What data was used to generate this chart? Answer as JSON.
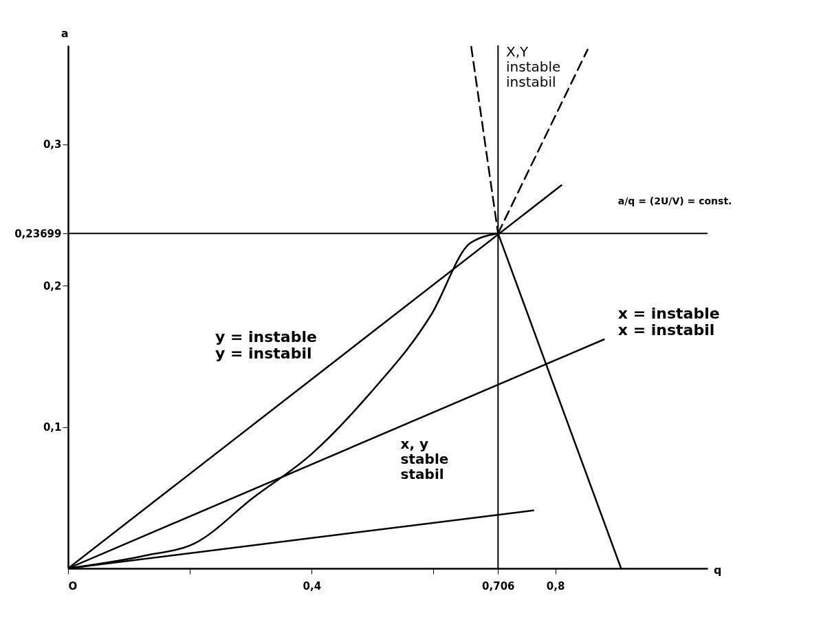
{
  "chart_data": {
    "type": "line",
    "xlabel": "q",
    "ylabel": "a",
    "xlim": [
      0,
      1.05
    ],
    "ylim": [
      0,
      0.37
    ],
    "xticks": [
      {
        "value": 0,
        "label": "O"
      },
      {
        "value": 0.2,
        "label": null
      },
      {
        "value": 0.4,
        "label": "0,4"
      },
      {
        "value": 0.6,
        "label": null
      },
      {
        "value": 0.706,
        "label": "0,706"
      },
      {
        "value": 0.8,
        "label": "0,8"
      }
    ],
    "yticks": [
      {
        "value": 0.1,
        "label": "0,1"
      },
      {
        "value": 0.2,
        "label": "0,2"
      },
      {
        "value": 0.23699,
        "label": "0,23699"
      },
      {
        "value": 0.3,
        "label": "0,3"
      }
    ],
    "grid": false,
    "marker": "none",
    "series": [
      {
        "color": "#000000",
        "x": [
          0,
          0.126,
          0.209,
          0.304,
          0.4,
          0.492,
          0.597,
          0.66,
          0.706
        ],
        "values": [
          0,
          0.009,
          0.018,
          0.05,
          0.081,
          0.122,
          0.18,
          0.23,
          0.237
        ]
      },
      {
        "color": "#000000",
        "x": [
          0.706,
          0.908
        ],
        "values": [
          0.237,
          0
        ]
      },
      {
        "color": "#000000",
        "x": [
          0,
          0.81
        ],
        "values": [
          0,
          0.271
        ]
      },
      {
        "color": "#000000",
        "x": [
          0,
          0.88
        ],
        "values": [
          0,
          0.162
        ]
      },
      {
        "color": "#000000",
        "x": [
          0,
          0.764
        ],
        "values": [
          0,
          0.041
        ]
      },
      {
        "color": "#000000",
        "line_style": "dashed",
        "x": [
          0.706,
          0.662
        ],
        "values": [
          0.237,
          0.369
        ]
      },
      {
        "color": "#000000",
        "line_style": "dashed",
        "x": [
          0.706,
          0.853
        ],
        "values": [
          0.237,
          0.367
        ]
      }
    ],
    "ref_lines": [
      {
        "axis": "y",
        "value": 0.23699
      },
      {
        "axis": "x",
        "value": 0.706
      }
    ],
    "annotations": [
      "X,Y\ninstable\ninstabil",
      "y = instable\ny = instabil",
      "x = instable\nx = instabil",
      "x, y\nstable\nstabil",
      "a/q = (2U/V) = const."
    ]
  }
}
